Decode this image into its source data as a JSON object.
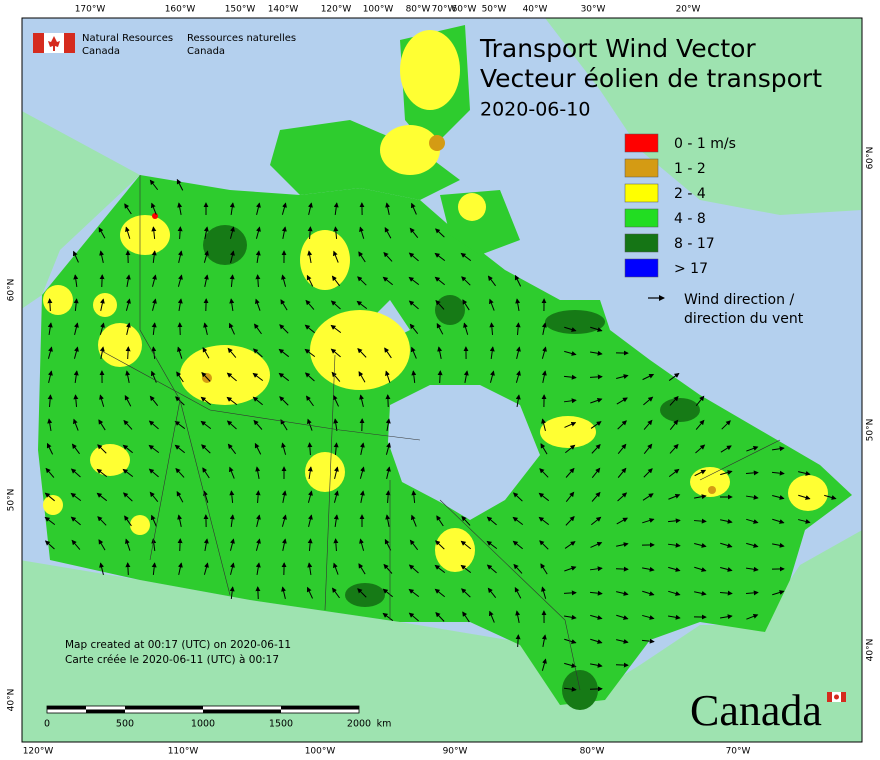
{
  "header": {
    "agency_en": [
      "Natural Resources",
      "Canada"
    ],
    "agency_fr": [
      "Ressources naturelles",
      "Canada"
    ],
    "title_en": "Transport Wind Vector",
    "title_fr": "Vecteur éolien de transport",
    "date": "2020-06-10"
  },
  "legend": {
    "classes": [
      {
        "label": "0 - 1 m/s",
        "color": "#ff0000"
      },
      {
        "label": "1 - 2",
        "color": "#d49b14"
      },
      {
        "label": "2 - 4",
        "color": "#ffff00"
      },
      {
        "label": "4 - 8",
        "color": "#22dd22"
      },
      {
        "label": "8 - 17",
        "color": "#157515"
      },
      {
        "label": "> 17",
        "color": "#0000ff"
      }
    ],
    "arrow_label": [
      "Wind direction /",
      "direction du vent"
    ]
  },
  "graticule": {
    "top": [
      "170°W",
      "160°W",
      "150°W",
      "140°W",
      "120°W",
      "100°W",
      "80°W",
      "70°W",
      "60°W",
      "50°W",
      "40°W",
      "30°W",
      "20°W"
    ],
    "bottom": [
      "120°W",
      "110°W",
      "100°W",
      "90°W",
      "80°W",
      "70°W"
    ],
    "left": [
      "60°N",
      "50°N",
      "40°N"
    ],
    "right": [
      "60°N",
      "50°N",
      "40°N"
    ]
  },
  "footer": {
    "created_en": "Map created at 00:17 (UTC) on 2020-06-11",
    "created_fr": "Carte créée le 2020-06-11 (UTC) à 00:17",
    "scale_labels": [
      "0",
      "500",
      "1000",
      "1500",
      "2000",
      "km"
    ],
    "wordmark": "Canada"
  }
}
